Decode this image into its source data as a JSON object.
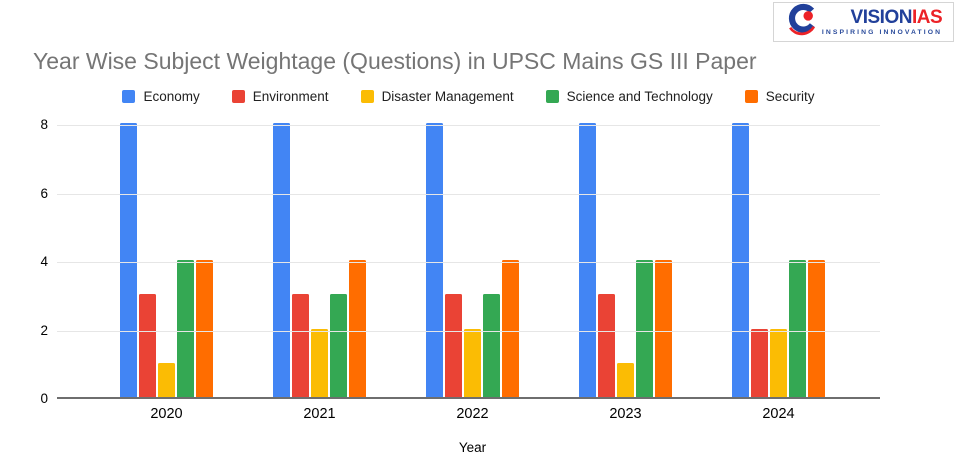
{
  "logo": {
    "brand_primary": "VISION",
    "brand_secondary": "IAS",
    "tagline": "INSPIRING INNOVATION",
    "navy": "#21409A",
    "red": "#EC2227"
  },
  "chart_data": {
    "type": "bar",
    "title": "Year Wise Subject Weightage (Questions) in UPSC Mains GS III Paper",
    "categories": [
      "2020",
      "2021",
      "2022",
      "2023",
      "2024"
    ],
    "series": [
      {
        "name": "Economy",
        "color": "#4285F4",
        "values": [
          8,
          8,
          8,
          8,
          8
        ]
      },
      {
        "name": "Environment",
        "color": "#EA4335",
        "values": [
          3,
          3,
          3,
          3,
          2
        ]
      },
      {
        "name": "Disaster Management",
        "color": "#FBBC04",
        "values": [
          1,
          2,
          2,
          1,
          2
        ]
      },
      {
        "name": "Science and Technology",
        "color": "#34A853",
        "values": [
          4,
          3,
          3,
          4,
          4
        ]
      },
      {
        "name": "Security",
        "color": "#FF6D00",
        "values": [
          4,
          4,
          4,
          4,
          4
        ]
      }
    ],
    "xlabel": "Year",
    "ylabel": "",
    "ylim": [
      0,
      8
    ],
    "yticks": [
      0,
      2,
      4,
      6,
      8
    ],
    "grid": "horizontal",
    "legend_position": "top",
    "colors": {
      "title_text": "#757575",
      "axis_line": "#6E6E6E",
      "gridline": "#E6E6E6",
      "tick_text": "#000000"
    }
  }
}
